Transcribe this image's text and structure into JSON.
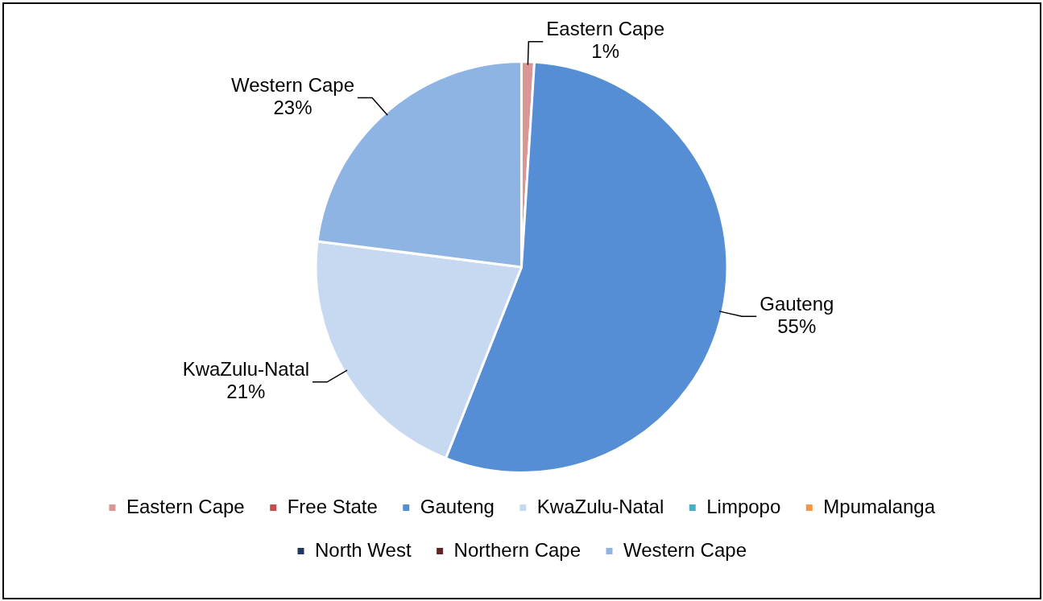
{
  "chart_data": {
    "type": "pie",
    "categories": [
      "Eastern Cape",
      "Free State",
      "Gauteng",
      "KwaZulu-Natal",
      "Limpopo",
      "Mpumalanga",
      "North West",
      "Northern Cape",
      "Western Cape"
    ],
    "values": [
      1,
      0,
      55,
      21,
      0,
      0,
      0,
      0,
      23
    ],
    "value_labels": [
      "1%",
      null,
      "55%",
      "21%",
      null,
      null,
      null,
      null,
      "23%"
    ],
    "colors": [
      "#d99694",
      "#c0504d",
      "#558ed5",
      "#c6d9f0",
      "#4bacc6",
      "#f79646",
      "#1f3864",
      "#632423",
      "#8eb4e3"
    ],
    "legend": "bottom"
  }
}
